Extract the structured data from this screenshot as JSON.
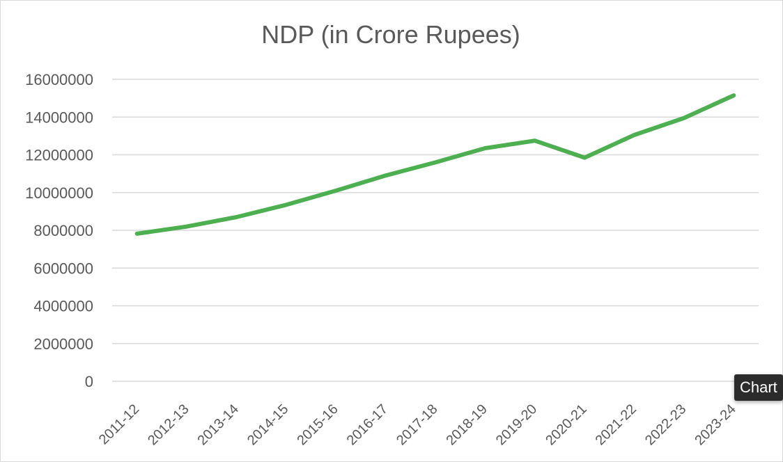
{
  "tooltip": {
    "label": "Chart"
  },
  "chart_data": {
    "type": "line",
    "title": "NDP (in Crore Rupees)",
    "xlabel": "",
    "ylabel": "",
    "categories": [
      "2011-12",
      "2012-13",
      "2013-14",
      "2014-15",
      "2015-16",
      "2016-17",
      "2017-18",
      "2018-19",
      "2019-20",
      "2020-21",
      "2021-22",
      "2022-23",
      "2023-24"
    ],
    "series": [
      {
        "values": [
          7820000,
          8200000,
          8700000,
          9350000,
          10100000,
          10900000,
          11600000,
          12350000,
          12750000,
          11850000,
          13050000,
          13950000,
          15150000
        ],
        "color": "#4caf50"
      }
    ],
    "ylim": [
      0,
      16000000
    ],
    "yticks": [
      0,
      2000000,
      4000000,
      6000000,
      8000000,
      10000000,
      12000000,
      14000000,
      16000000
    ],
    "ytick_labels": [
      "0",
      "2000000",
      "4000000",
      "6000000",
      "8000000",
      "10000000",
      "12000000",
      "14000000",
      "16000000"
    ],
    "grid": true,
    "legend": "none"
  }
}
